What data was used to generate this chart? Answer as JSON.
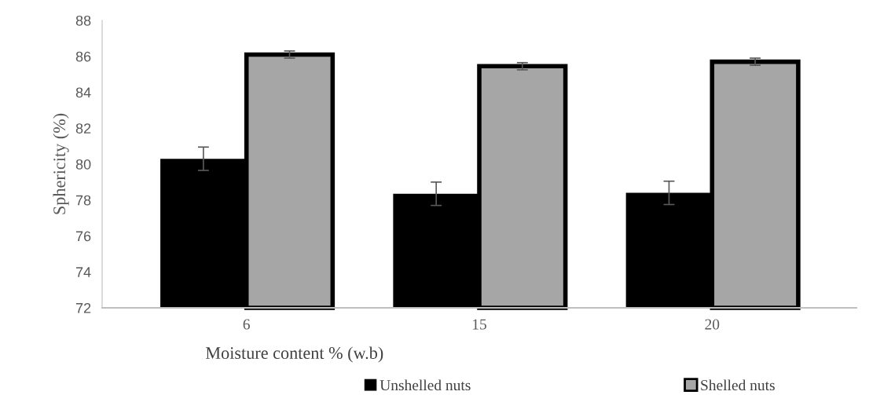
{
  "chart_data": {
    "type": "bar",
    "xlabel": "Moisture content % (w.b)",
    "ylabel": "Sphericity (%)",
    "categories": [
      "6",
      "15",
      "20"
    ],
    "series": [
      {
        "name": "Unshelled nuts",
        "color": "#000000",
        "values": [
          80.3,
          78.35,
          78.4
        ],
        "errors": [
          0.65,
          0.65,
          0.65
        ]
      },
      {
        "name": "Shelled nuts",
        "color": "#a6a6a6",
        "values": [
          86.1,
          85.45,
          85.7
        ],
        "errors": [
          0.2,
          0.2,
          0.2
        ]
      }
    ],
    "ylim": [
      72,
      88
    ],
    "yticks": [
      72,
      74,
      76,
      78,
      80,
      82,
      84,
      86,
      88
    ],
    "grid": false,
    "legend": "bottom"
  }
}
